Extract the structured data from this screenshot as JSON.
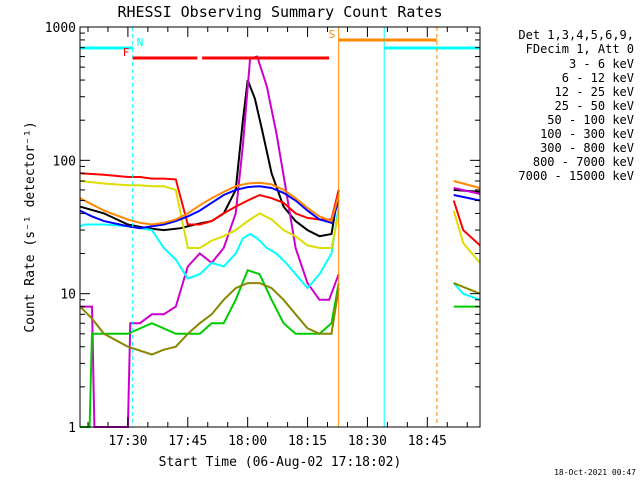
{
  "chart_data": {
    "type": "line",
    "title": "RHESSI Observing Summary Count Rates",
    "xlabel": "Start Time (06-Aug-02 17:18:02)",
    "ylabel": "Count Rate (s⁻¹ detector⁻¹)",
    "yscale": "log",
    "ylim": [
      1,
      1000
    ],
    "xlim_minutes": [
      17.3,
      18.97
    ],
    "xtick_labels": [
      "17:30",
      "17:45",
      "18:00",
      "18:15",
      "18:30",
      "18:45"
    ],
    "xtick_values": [
      17.5,
      17.75,
      18.0,
      18.25,
      18.5,
      18.75
    ],
    "ytick_labels": [
      "1",
      "10",
      "100",
      "1000"
    ],
    "ytick_values": [
      1,
      10,
      100,
      1000
    ],
    "legend_header": [
      "Det 1,3,4,5,6,9,",
      "FDecim 1, Att 0"
    ],
    "legend_placement": "right",
    "timestamp": "18-Oct-2021 00:47",
    "data_gap": [
      18.38,
      18.86
    ],
    "series": [
      {
        "name": "3 - 6 keV",
        "color": "#000000",
        "x": [
          17.3,
          17.4,
          17.5,
          17.58,
          17.65,
          17.72,
          17.78,
          17.85,
          17.9,
          17.95,
          17.98,
          18.0,
          18.03,
          18.06,
          18.1,
          18.15,
          18.2,
          18.25,
          18.3,
          18.35,
          18.38
        ],
        "y": [
          45,
          40,
          33,
          31,
          30,
          31,
          33,
          35,
          40,
          60,
          200,
          400,
          290,
          170,
          80,
          45,
          35,
          30,
          27,
          28,
          60
        ]
      },
      {
        "name": "6 - 12 keV",
        "color": "#cc00cc",
        "x": [
          17.3,
          17.35,
          17.36,
          17.5,
          17.51,
          17.55,
          17.6,
          17.65,
          17.7,
          17.75,
          17.8,
          17.85,
          17.9,
          17.95,
          17.98,
          18.01,
          18.04,
          18.08,
          18.12,
          18.16,
          18.2,
          18.25,
          18.3,
          18.34,
          18.38
        ],
        "y": [
          8,
          8,
          1,
          1,
          6,
          6,
          7,
          7,
          8,
          16,
          20,
          17,
          22,
          40,
          130,
          580,
          600,
          360,
          160,
          60,
          22,
          12,
          9,
          9,
          14
        ]
      },
      {
        "name": "12 - 25 keV",
        "color": "#00cc00",
        "x": [
          17.3,
          17.34,
          17.35,
          17.4,
          17.5,
          17.6,
          17.7,
          17.8,
          17.85,
          17.9,
          17.95,
          18.0,
          18.05,
          18.1,
          18.15,
          18.2,
          18.25,
          18.3,
          18.35,
          18.38
        ],
        "y": [
          1,
          1,
          5,
          5,
          5,
          6,
          5,
          5,
          6,
          6,
          9,
          15,
          14,
          9,
          6,
          5,
          5,
          5,
          6,
          12
        ]
      },
      {
        "name": "25 - 50 keV",
        "color": "#00ffff",
        "x": [
          17.3,
          17.32,
          17.4,
          17.5,
          17.6,
          17.65,
          17.7,
          17.75,
          17.8,
          17.85,
          17.9,
          17.95,
          17.98,
          18.01,
          18.04,
          18.08,
          18.12,
          18.16,
          18.2,
          18.25,
          18.3,
          18.35,
          18.38
        ],
        "y": [
          32,
          33,
          33,
          32,
          30,
          22,
          18,
          13,
          14,
          17,
          16,
          20,
          26,
          28,
          26,
          22,
          20,
          17,
          14,
          11,
          14,
          20,
          45
        ]
      },
      {
        "name": "50 - 100 keV",
        "color": "#dddd00",
        "x": [
          17.3,
          17.4,
          17.5,
          17.55,
          17.6,
          17.65,
          17.7,
          17.75,
          17.8,
          17.85,
          17.9,
          17.95,
          18.0,
          18.05,
          18.1,
          18.15,
          18.2,
          18.25,
          18.3,
          18.35,
          18.38
        ],
        "y": [
          70,
          67,
          65,
          65,
          64,
          64,
          60,
          22,
          22,
          25,
          27,
          30,
          35,
          40,
          36,
          30,
          27,
          23,
          22,
          22,
          40
        ]
      },
      {
        "name": "100 - 300 keV",
        "color": "#ff0000",
        "x": [
          17.3,
          17.4,
          17.5,
          17.55,
          17.6,
          17.65,
          17.7,
          17.75,
          17.8,
          17.85,
          17.9,
          17.95,
          18.0,
          18.05,
          18.1,
          18.15,
          18.2,
          18.25,
          18.3,
          18.35,
          18.38
        ],
        "y": [
          80,
          78,
          75,
          75,
          73,
          73,
          72,
          33,
          33,
          35,
          40,
          45,
          50,
          55,
          52,
          48,
          40,
          37,
          36,
          36,
          60
        ]
      },
      {
        "name": "300 - 800 keV",
        "color": "#0000ff",
        "x": [
          17.3,
          17.35,
          17.4,
          17.5,
          17.55,
          17.6,
          17.65,
          17.7,
          17.75,
          17.8,
          17.85,
          17.9,
          17.95,
          18.0,
          18.05,
          18.1,
          18.15,
          18.2,
          18.25,
          18.3,
          18.35,
          18.38
        ],
        "y": [
          42,
          38,
          35,
          32,
          31,
          32,
          33,
          35,
          38,
          42,
          48,
          55,
          60,
          63,
          64,
          62,
          57,
          50,
          42,
          36,
          34,
          50
        ]
      },
      {
        "name": "800 - 7000 keV",
        "color": "#ff8800",
        "x": [
          17.3,
          17.4,
          17.5,
          17.55,
          17.6,
          17.65,
          17.7,
          17.75,
          17.8,
          17.85,
          17.9,
          17.95,
          18.0,
          18.05,
          18.1,
          18.15,
          18.2,
          18.25,
          18.3,
          18.35,
          18.38
        ],
        "y": [
          52,
          42,
          36,
          34,
          33,
          34,
          36,
          40,
          46,
          52,
          58,
          64,
          67,
          68,
          66,
          60,
          52,
          44,
          38,
          35,
          55
        ]
      },
      {
        "name": "7000 - 15000 keV",
        "color": "#888800",
        "x": [
          17.3,
          17.35,
          17.4,
          17.5,
          17.6,
          17.65,
          17.7,
          17.75,
          17.8,
          17.85,
          17.9,
          17.95,
          18.0,
          18.05,
          18.1,
          18.15,
          18.2,
          18.25,
          18.3,
          18.35,
          18.38
        ],
        "y": [
          8,
          6.5,
          5,
          4,
          3.5,
          3.8,
          4,
          5,
          6,
          7,
          9,
          11,
          12,
          12,
          11,
          9,
          7,
          5.5,
          5,
          5,
          11
        ]
      }
    ],
    "series_after_gap": [
      {
        "name": "3 - 6 keV",
        "x": [
          18.86,
          18.97
        ],
        "y": [
          60,
          58
        ]
      },
      {
        "name": "6 - 12 keV",
        "x": [
          18.86,
          18.97
        ],
        "y": [
          62,
          56
        ]
      },
      {
        "name": "12 - 25 keV",
        "x": [
          18.86,
          18.97
        ],
        "y": [
          8,
          8
        ]
      },
      {
        "name": "25 - 50 keV",
        "x": [
          18.86,
          18.9,
          18.97
        ],
        "y": [
          12,
          10,
          9
        ]
      },
      {
        "name": "50 - 100 keV",
        "x": [
          18.86,
          18.9,
          18.97
        ],
        "y": [
          42,
          24,
          17
        ]
      },
      {
        "name": "100 - 300 keV",
        "x": [
          18.86,
          18.9,
          18.97
        ],
        "y": [
          50,
          30,
          23
        ]
      },
      {
        "name": "300 - 800 keV",
        "x": [
          18.86,
          18.97
        ],
        "y": [
          55,
          50
        ]
      },
      {
        "name": "800 - 7000 keV",
        "x": [
          18.86,
          18.97
        ],
        "y": [
          70,
          62
        ]
      },
      {
        "name": "7000 - 15000 keV",
        "x": [
          18.86,
          18.97
        ],
        "y": [
          12,
          10
        ]
      }
    ],
    "annotations": [
      {
        "label": "N",
        "color": "#00ffff",
        "type": "night",
        "bars": [
          [
            17.3,
            17.52
          ],
          [
            18.57,
            18.97
          ]
        ],
        "vlines": [
          17.3,
          17.52,
          18.57,
          18.97
        ]
      },
      {
        "label": "F",
        "color": "#ff0000",
        "type": "flare",
        "bars": [
          [
            17.52,
            17.79
          ],
          [
            17.81,
            18.34
          ]
        ]
      },
      {
        "label": "S",
        "color": "#ff8800",
        "type": "saa",
        "bars": [
          [
            18.38,
            18.79
          ]
        ],
        "vlines": [
          18.38,
          18.79
        ]
      }
    ]
  }
}
